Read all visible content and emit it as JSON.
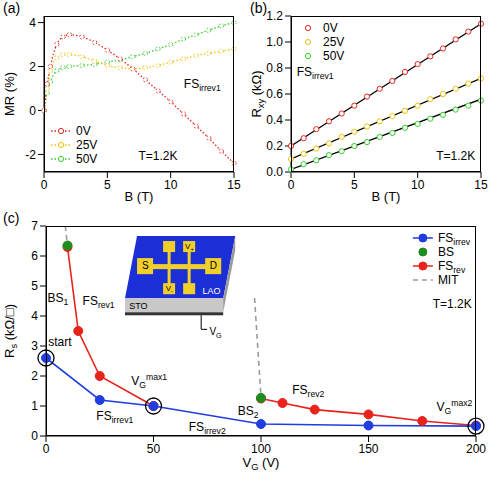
{
  "chart_data": [
    {
      "panel_label": "(a)",
      "type": "line",
      "x_label": {
        "text": "B",
        "after": " (T)"
      },
      "y_label": {
        "text": "MR (%)"
      },
      "xlim": [
        0,
        15
      ],
      "xticks": [
        0,
        5,
        10,
        15
      ],
      "ylim": [
        -2.8,
        4.3
      ],
      "yticks": [
        -2,
        0,
        2,
        4
      ],
      "legend": "lower left",
      "annotations": [
        {
          "text": "FS",
          "sub": "irrev1"
        },
        {
          "text": "T=1.2K"
        }
      ],
      "x": [
        0,
        0.25,
        0.5,
        1,
        1.5,
        2,
        3,
        4,
        5,
        6,
        7,
        8,
        9,
        10,
        11,
        12,
        13,
        14,
        15
      ],
      "series": [
        {
          "name": "0V",
          "color": "#e4261f",
          "marker": "open_circle",
          "line_style": "dotted",
          "values": [
            0,
            1.2,
            2.0,
            3.0,
            3.35,
            3.45,
            3.35,
            3.1,
            2.75,
            2.35,
            1.9,
            1.4,
            0.9,
            0.4,
            -0.15,
            -0.7,
            -1.25,
            -1.85,
            -2.4
          ]
        },
        {
          "name": "25V",
          "color": "#f0c20e",
          "marker": "open_circle",
          "line_style": "dotted",
          "values": [
            0,
            1.0,
            1.8,
            2.4,
            2.55,
            2.55,
            2.45,
            2.25,
            2.05,
            1.95,
            1.9,
            1.95,
            2.05,
            2.2,
            2.35,
            2.5,
            2.6,
            2.7,
            2.8
          ]
        },
        {
          "name": "50V",
          "color": "#35cf2b",
          "marker": "open_circle",
          "line_style": "dotted",
          "values": [
            0,
            0.8,
            1.3,
            1.8,
            1.95,
            2.0,
            2.05,
            2.1,
            2.2,
            2.3,
            2.45,
            2.6,
            2.8,
            3.0,
            3.25,
            3.45,
            3.65,
            3.85,
            4.0
          ]
        }
      ]
    },
    {
      "panel_label": "(b)",
      "type": "scatter",
      "x_label": {
        "text": "B",
        "after": " (T)"
      },
      "y_label": {
        "text": "R",
        "sub": "xy",
        "after": " (kΩ)"
      },
      "xlim": [
        0,
        15
      ],
      "xticks": [
        0,
        5,
        10,
        15
      ],
      "ylim": [
        0,
        1.2
      ],
      "yticks": [
        {
          "value": 0,
          "label": "0.0"
        },
        0.2,
        0.4,
        0.6,
        0.8,
        {
          "value": 1,
          "label": "1.0"
        },
        1.2
      ],
      "legend": "upper left",
      "annotations": [
        {
          "text": "FS",
          "sub": "irrev1"
        },
        {
          "text": "T=1.2K"
        }
      ],
      "x": [
        0,
        1,
        2,
        3,
        4,
        5,
        6,
        7,
        8,
        9,
        10,
        11,
        12,
        13,
        14,
        15
      ],
      "fit_x": [
        0,
        15
      ],
      "series": [
        {
          "name": "0V",
          "color": "#e4261f",
          "marker": "open_circle",
          "line_style": "none",
          "values": [
            0.2,
            0.26,
            0.33,
            0.39,
            0.45,
            0.51,
            0.58,
            0.64,
            0.7,
            0.77,
            0.83,
            0.89,
            0.95,
            1.02,
            1.08,
            1.14
          ],
          "fit_values": [
            0.2,
            1.14
          ]
        },
        {
          "name": "25V",
          "color": "#f0c20e",
          "marker": "open_circle",
          "line_style": "none",
          "values": [
            0.1,
            0.14,
            0.18,
            0.22,
            0.27,
            0.31,
            0.35,
            0.39,
            0.43,
            0.47,
            0.51,
            0.56,
            0.6,
            0.64,
            0.68,
            0.72
          ],
          "fit_values": [
            0.1,
            0.72
          ]
        },
        {
          "name": "50V",
          "color": "#35cf2b",
          "marker": "open_circle",
          "line_style": "none",
          "values": [
            0.02,
            0.06,
            0.09,
            0.13,
            0.16,
            0.2,
            0.23,
            0.27,
            0.3,
            0.34,
            0.37,
            0.41,
            0.44,
            0.48,
            0.51,
            0.55
          ],
          "fit_values": [
            0.02,
            0.56
          ]
        }
      ]
    },
    {
      "panel_label": "(c)",
      "type": "line",
      "x_label": {
        "text": "V",
        "sub": "G",
        "after": " (V)"
      },
      "y_label": {
        "text": "R",
        "sub": "s",
        "after": " (kΩ/□)"
      },
      "xlim": [
        0,
        200
      ],
      "xticks": [
        0,
        50,
        100,
        150,
        200
      ],
      "ylim": [
        0,
        7
      ],
      "yticks": [
        0,
        1,
        2,
        3,
        4,
        5,
        6,
        7
      ],
      "legend": "upper right",
      "annotations": [
        {
          "text": "start"
        },
        {
          "text": "BS",
          "sub": "1"
        },
        {
          "text": "FS",
          "sub": "rev1"
        },
        {
          "text": "V",
          "sub": "G",
          "sup": "max1"
        },
        {
          "text": "FS",
          "sub": "irrev1"
        },
        {
          "text": "FS",
          "sub": "irrev2"
        },
        {
          "text": "BS",
          "sub": "2"
        },
        {
          "text": "FS",
          "sub": "rev2"
        },
        {
          "text": "V",
          "sub": "G",
          "sup": "max2"
        },
        {
          "text": "T=1.2K"
        }
      ],
      "inset": {
        "film": "LAO",
        "substrate": "STO",
        "source": "S",
        "drain": "D",
        "v_plus": {
          "text": "V",
          "sub": "+"
        },
        "v_minus": {
          "text": "V",
          "sub": "-"
        },
        "gate": {
          "text": "V",
          "sub": "G"
        }
      },
      "series": [
        {
          "name": {
            "text": "FS",
            "sub": "irrev"
          },
          "color": "#1f3de0",
          "marker": "circle",
          "line_style": "solid",
          "x": [
            0,
            25,
            50,
            100,
            150,
            200
          ],
          "values": [
            2.6,
            1.2,
            1.0,
            0.4,
            0.35,
            0.33
          ]
        },
        {
          "name": {
            "text": "BS"
          },
          "color": "#1e8c1e",
          "marker": "circle",
          "line_style": "none",
          "x": [
            10,
            100
          ],
          "values": [
            6.35,
            1.27
          ]
        },
        {
          "name": {
            "text": "FS",
            "sub": "rev"
          },
          "color": "#e8231b",
          "marker": "circle",
          "line_style": "solid",
          "x": [
            10,
            15,
            25,
            50,
            null,
            100,
            110,
            125,
            150,
            175,
            200
          ],
          "values": [
            6.3,
            3.5,
            2.0,
            1.0,
            null,
            1.25,
            1.1,
            0.88,
            0.72,
            0.5,
            0.35
          ]
        },
        {
          "name": {
            "text": "MIT"
          },
          "color": "#9a9a9a",
          "marker": "none",
          "line_style": "dashed",
          "x": [
            9,
            10,
            null,
            97,
            100
          ],
          "values": [
            7.0,
            6.3,
            null,
            4.6,
            1.3
          ]
        }
      ]
    }
  ]
}
